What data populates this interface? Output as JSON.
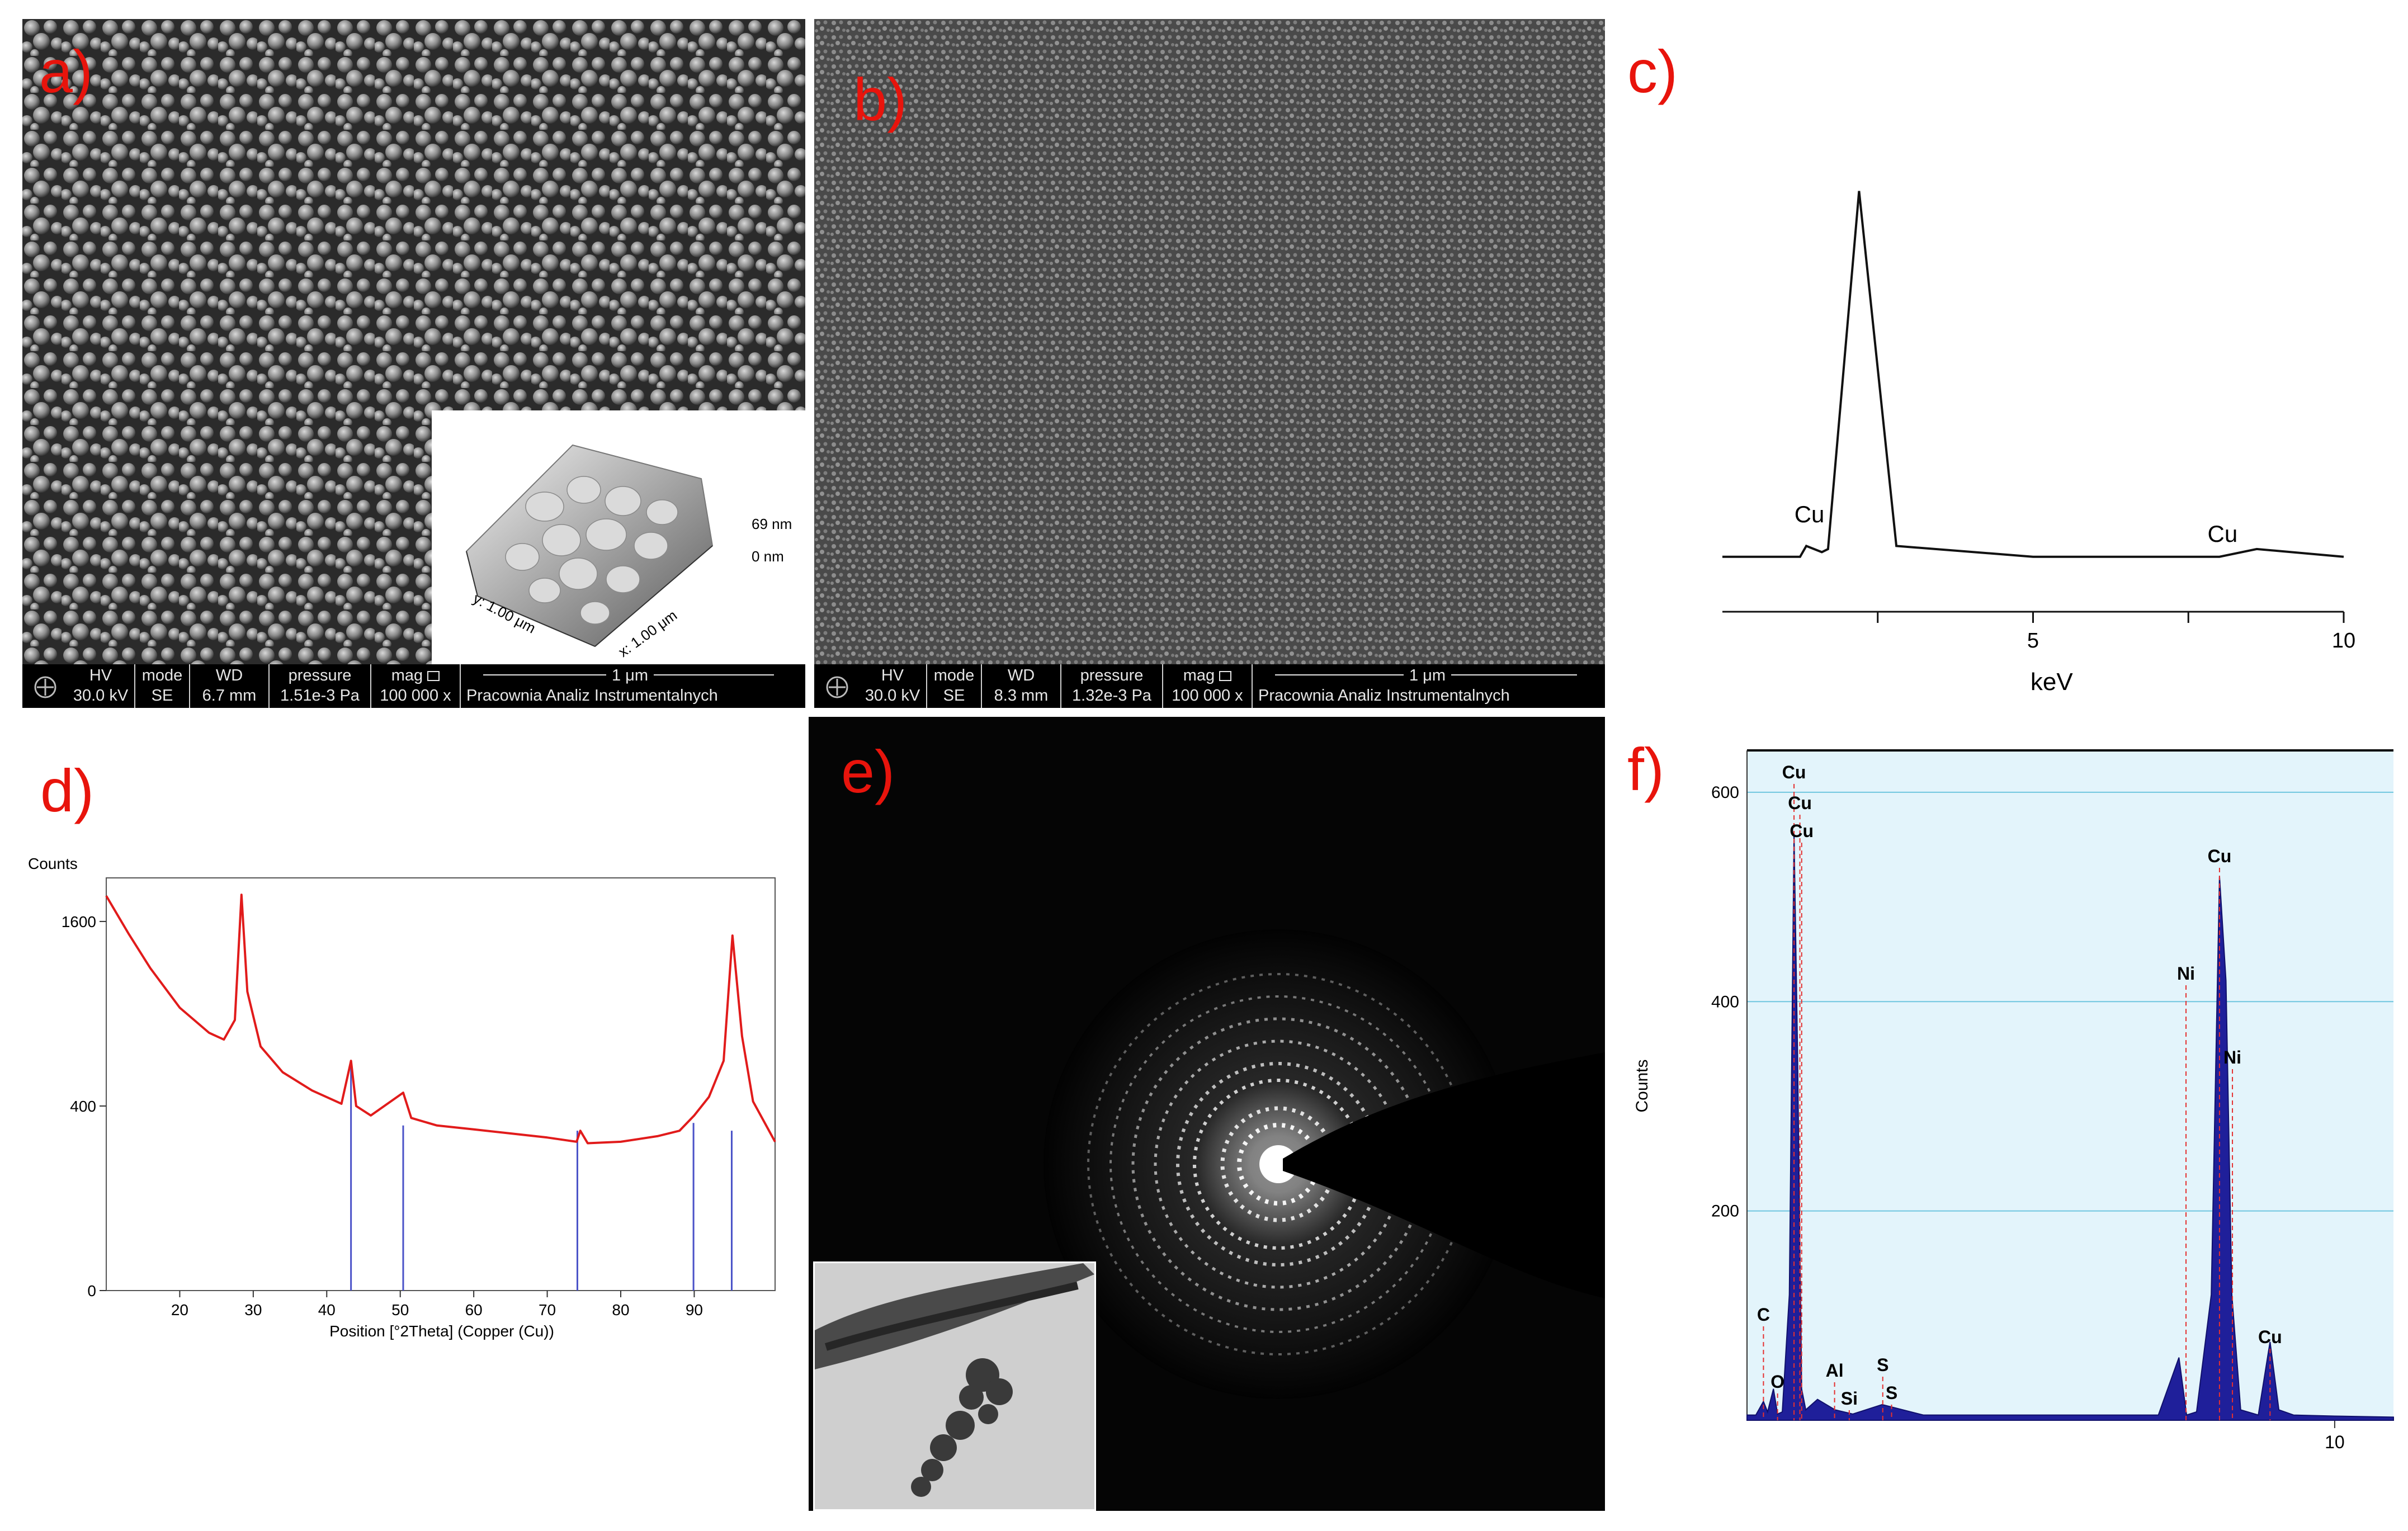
{
  "panel_labels": {
    "a": "a)",
    "b": "b)",
    "c": "c)",
    "d": "d)",
    "e": "e)",
    "f": "f)"
  },
  "sem_a": {
    "hv_label": "HV",
    "hv_value": "30.0 kV",
    "mode_label": "mode",
    "mode_value": "SE",
    "wd_label": "WD",
    "wd_value": "6.7 mm",
    "pressure_label": "pressure",
    "pressure_value": "1.51e-3 Pa",
    "mag_label": "mag",
    "mag_value": "100 000 x",
    "scale_label": "1 μm",
    "lab_name": "Pracownia Analiz Instrumentalnych"
  },
  "sem_b": {
    "hv_label": "HV",
    "hv_value": "30.0 kV",
    "mode_label": "mode",
    "mode_value": "SE",
    "wd_label": "WD",
    "wd_value": "8.3 mm",
    "pressure_label": "pressure",
    "pressure_value": "1.32e-3 Pa",
    "mag_label": "mag",
    "mag_value": "100 000 x",
    "scale_label": "1 μm",
    "lab_name": "Pracownia Analiz Instrumentalnych"
  },
  "afm_inset": {
    "z_top": "69 nm",
    "z_bottom": "0 nm",
    "y_axis": "y: 1.00 μm",
    "x_axis": "x: 1.00 μm"
  },
  "colors": {
    "label_red": "#e8140c",
    "xrd_line": "#e11b1b",
    "xrd_ref": "#4a52c8",
    "eds_fill": "#1f1f9a",
    "eds_bg": "#e3f4fb",
    "eds_grid": "#6fc6df"
  },
  "chart_data": [
    {
      "panel": "c",
      "type": "line",
      "xlabel": "keV",
      "x_ticks": [
        5,
        10
      ],
      "xlim": [
        0,
        10
      ],
      "series": [
        {
          "x": [
            0,
            0.8,
            1.25,
            1.35,
            1.6,
            1.7,
            2.2,
            2.8,
            5,
            8.0,
            8.6,
            10
          ],
          "y": [
            3,
            3,
            3,
            10,
            6,
            8,
            240,
            10,
            3,
            3,
            8,
            3
          ]
        }
      ],
      "annotations": [
        {
          "text": "Cu",
          "x": 1.4
        },
        {
          "text": "Cu",
          "x": 8.05
        }
      ]
    },
    {
      "panel": "d",
      "type": "line",
      "ylabel": "Counts",
      "xlabel": "Position [°2Theta] (Copper (Cu))",
      "x_ticks": [
        20,
        30,
        40,
        50,
        60,
        70,
        80,
        90
      ],
      "y_ticks": [
        0,
        400,
        1600
      ],
      "xlim": [
        10,
        101
      ],
      "ylim": [
        0,
        2000
      ],
      "series": [
        {
          "name": "",
          "x": [
            10,
            13,
            16,
            20,
            24,
            26,
            27.5,
            28.4,
            29.2,
            31,
            34,
            38,
            42,
            43.3,
            44,
            46,
            50.4,
            51.5,
            55,
            60,
            65,
            70,
            74,
            74.5,
            75.5,
            80,
            85,
            88,
            90,
            92,
            94,
            95.2,
            96.5,
            98,
            101
          ],
          "y": [
            1830,
            1500,
            1220,
            940,
            780,
            740,
            860,
            1840,
            1050,
            700,
            560,
            470,
            410,
            620,
            400,
            360,
            460,
            350,
            320,
            305,
            290,
            275,
            260,
            300,
            255,
            260,
            280,
            300,
            360,
            440,
            620,
            1480,
            760,
            420,
            260
          ]
        }
      ],
      "reference_peaks": [
        {
          "x": 43.3,
          "y": 600
        },
        {
          "x": 50.4,
          "y": 320
        },
        {
          "x": 74.1,
          "y": 300
        },
        {
          "x": 89.9,
          "y": 330
        },
        {
          "x": 95.1,
          "y": 300
        }
      ]
    },
    {
      "panel": "f",
      "type": "area",
      "ylabel": "Counts",
      "y_ticks": [
        200,
        400,
        600
      ],
      "x_ticks": [
        10
      ],
      "xlim": [
        0,
        11
      ],
      "ylim": [
        0,
        640
      ],
      "series": [
        {
          "x": [
            0,
            0.15,
            0.28,
            0.35,
            0.45,
            0.52,
            0.6,
            0.72,
            0.8,
            0.86,
            0.93,
            1.0,
            1.2,
            1.5,
            1.8,
            2.3,
            3,
            5,
            7.0,
            7.35,
            7.48,
            7.65,
            7.9,
            8.04,
            8.15,
            8.25,
            8.4,
            8.7,
            8.9,
            9.05,
            9.3,
            10,
            11
          ],
          "y": [
            5,
            5,
            18,
            8,
            30,
            6,
            8,
            120,
            560,
            350,
            30,
            10,
            20,
            10,
            6,
            15,
            5,
            5,
            5,
            60,
            5,
            8,
            120,
            520,
            420,
            120,
            10,
            5,
            75,
            10,
            5,
            4,
            3
          ]
        }
      ],
      "annotations": [
        {
          "text": "Cu",
          "x": 0.8
        },
        {
          "text": "Cu",
          "x": 0.9
        },
        {
          "text": "Cu",
          "x": 0.93
        },
        {
          "text": "Cu",
          "x": 8.04
        },
        {
          "text": "Ni",
          "x": 8.26
        },
        {
          "text": "Ni",
          "x": 7.47
        },
        {
          "text": "Cu",
          "x": 8.9
        },
        {
          "text": "C",
          "x": 0.28
        },
        {
          "text": "O",
          "x": 0.52
        },
        {
          "text": "Al",
          "x": 1.49
        },
        {
          "text": "Si",
          "x": 1.74
        },
        {
          "text": "S",
          "x": 2.31
        },
        {
          "text": "S",
          "x": 2.46
        }
      ]
    }
  ]
}
